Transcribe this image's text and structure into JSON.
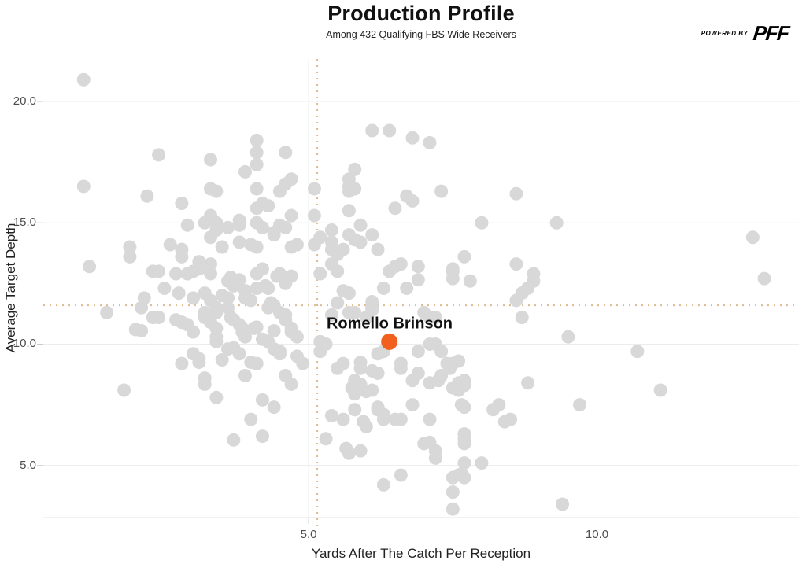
{
  "header": {
    "logo": {
      "powered_by": "POWERED BY",
      "brand": "PFF"
    }
  },
  "chart_data": {
    "type": "scatter",
    "title": "Production Profile",
    "subtitle": "Among 432 Qualifying FBS Wide Receivers",
    "xlabel": "Yards After The Catch Per Reception",
    "ylabel": "Average Target Depth",
    "xlim": [
      0.4,
      13.5
    ],
    "ylim": [
      2.85,
      21.75
    ],
    "x_ticks": [
      5.0,
      10.0
    ],
    "x_tick_labels": [
      "5.0",
      "10.0"
    ],
    "y_ticks": [
      5.0,
      10.0,
      15.0,
      20.0
    ],
    "y_tick_labels": [
      "5.0",
      "10.0",
      "15.0",
      "20.0"
    ],
    "grid": true,
    "legend": "none",
    "colors": {
      "points": "#d8d8d8",
      "highlight": "#f1611d",
      "crosshair": "#dcbb90",
      "gridline": "#ececec",
      "tick": "#c8c8c8"
    },
    "crosshair": {
      "x": 5.15,
      "y": 11.6
    },
    "highlight": {
      "name": "Romello Brinson",
      "x": 6.4,
      "y": 10.1
    },
    "points": [
      [
        1.1,
        20.9
      ],
      [
        2.4,
        17.8
      ],
      [
        1.1,
        16.5
      ],
      [
        3.3,
        17.6
      ],
      [
        2.2,
        16.1
      ],
      [
        2.8,
        15.8
      ],
      [
        4.1,
        18.4
      ],
      [
        4.1,
        17.9
      ],
      [
        4.6,
        17.9
      ],
      [
        4.1,
        17.4
      ],
      [
        3.9,
        17.1
      ],
      [
        3.3,
        16.4
      ],
      [
        3.4,
        16.3
      ],
      [
        4.1,
        16.4
      ],
      [
        4.5,
        16.3
      ],
      [
        4.6,
        16.6
      ],
      [
        4.7,
        16.8
      ],
      [
        4.2,
        15.8
      ],
      [
        4.3,
        15.7
      ],
      [
        4.1,
        15.6
      ],
      [
        3.3,
        15.3
      ],
      [
        3.4,
        15.0
      ],
      [
        3.2,
        15.0
      ],
      [
        2.9,
        14.9
      ],
      [
        3.4,
        14.7
      ],
      [
        3.6,
        14.8
      ],
      [
        3.8,
        15.1
      ],
      [
        3.8,
        14.9
      ],
      [
        4.1,
        15.0
      ],
      [
        4.2,
        14.8
      ],
      [
        4.4,
        14.5
      ],
      [
        4.4,
        14.6
      ],
      [
        4.5,
        14.9
      ],
      [
        4.7,
        15.3
      ],
      [
        4.6,
        14.8
      ],
      [
        4.8,
        14.1
      ],
      [
        4.7,
        14.0
      ],
      [
        4.0,
        14.1
      ],
      [
        4.1,
        14.0
      ],
      [
        3.8,
        14.2
      ],
      [
        3.3,
        14.4
      ],
      [
        2.6,
        14.1
      ],
      [
        2.8,
        13.9
      ],
      [
        1.9,
        14.0
      ],
      [
        3.5,
        14.0
      ],
      [
        6.1,
        18.8
      ],
      [
        6.4,
        18.8
      ],
      [
        6.8,
        18.5
      ],
      [
        7.1,
        18.3
      ],
      [
        5.8,
        17.2
      ],
      [
        5.7,
        16.8
      ],
      [
        5.7,
        16.5
      ],
      [
        5.8,
        16.4
      ],
      [
        5.7,
        16.3
      ],
      [
        5.1,
        16.4
      ],
      [
        7.3,
        16.3
      ],
      [
        8.6,
        16.2
      ],
      [
        6.7,
        16.1
      ],
      [
        6.8,
        15.9
      ],
      [
        6.5,
        15.6
      ],
      [
        5.7,
        15.5
      ],
      [
        5.1,
        15.3
      ],
      [
        8.0,
        15.0
      ],
      [
        9.3,
        15.0
      ],
      [
        5.9,
        14.9
      ],
      [
        5.4,
        14.7
      ],
      [
        5.2,
        14.4
      ],
      [
        5.4,
        14.2
      ],
      [
        5.7,
        14.5
      ],
      [
        5.8,
        14.3
      ],
      [
        5.9,
        14.2
      ],
      [
        6.1,
        14.5
      ],
      [
        5.1,
        14.1
      ],
      [
        5.4,
        13.9
      ],
      [
        5.6,
        13.9
      ],
      [
        6.2,
        13.9
      ],
      [
        12.7,
        14.4
      ],
      [
        12.9,
        12.7
      ],
      [
        1.2,
        13.2
      ],
      [
        1.9,
        13.6
      ],
      [
        2.3,
        13.0
      ],
      [
        2.4,
        13.0
      ],
      [
        2.7,
        12.9
      ],
      [
        2.8,
        13.6
      ],
      [
        2.9,
        12.9
      ],
      [
        3.0,
        13.0
      ],
      [
        3.1,
        13.1
      ],
      [
        3.1,
        13.4
      ],
      [
        3.3,
        13.3
      ],
      [
        3.3,
        12.9
      ],
      [
        3.2,
        12.1
      ],
      [
        3.3,
        11.8
      ],
      [
        2.75,
        12.1
      ],
      [
        3.0,
        11.9
      ],
      [
        2.5,
        12.3
      ],
      [
        2.15,
        11.9
      ],
      [
        2.1,
        11.5
      ],
      [
        1.5,
        11.3
      ],
      [
        2.3,
        11.1
      ],
      [
        2.4,
        11.1
      ],
      [
        2.7,
        11.0
      ],
      [
        2.8,
        10.9
      ],
      [
        2.9,
        10.8
      ],
      [
        2.0,
        10.6
      ],
      [
        2.1,
        10.55
      ],
      [
        3.0,
        10.5
      ],
      [
        3.2,
        11.3
      ],
      [
        3.2,
        11.1
      ],
      [
        3.3,
        10.9
      ],
      [
        3.4,
        11.3
      ],
      [
        3.4,
        11.5
      ],
      [
        3.5,
        12.0
      ],
      [
        3.6,
        12.6
      ],
      [
        3.65,
        12.75
      ],
      [
        3.7,
        12.4
      ],
      [
        3.8,
        12.65
      ],
      [
        3.9,
        12.2
      ],
      [
        3.9,
        11.9
      ],
      [
        4.0,
        11.8
      ],
      [
        3.6,
        11.9
      ],
      [
        3.6,
        11.5
      ],
      [
        3.4,
        10.65
      ],
      [
        3.4,
        10.3
      ],
      [
        3.4,
        10.1
      ],
      [
        3.65,
        11.1
      ],
      [
        3.7,
        11.0
      ],
      [
        3.8,
        10.8
      ],
      [
        3.85,
        10.65
      ],
      [
        3.85,
        10.5
      ],
      [
        3.9,
        10.3
      ],
      [
        4.1,
        12.3
      ],
      [
        4.1,
        12.9
      ],
      [
        4.2,
        13.1
      ],
      [
        4.25,
        12.4
      ],
      [
        4.3,
        12.3
      ],
      [
        4.35,
        11.7
      ],
      [
        4.3,
        11.5
      ],
      [
        4.4,
        11.6
      ],
      [
        4.45,
        12.8
      ],
      [
        4.5,
        12.9
      ],
      [
        4.6,
        12.5
      ],
      [
        4.65,
        12.75
      ],
      [
        4.7,
        12.8
      ],
      [
        4.5,
        11.3
      ],
      [
        4.6,
        11.2
      ],
      [
        4.6,
        11.0
      ],
      [
        4.7,
        10.65
      ],
      [
        4.7,
        10.5
      ],
      [
        4.05,
        10.65
      ],
      [
        4.1,
        10.7
      ],
      [
        4.2,
        10.2
      ],
      [
        4.3,
        10.1
      ],
      [
        4.4,
        9.8
      ],
      [
        4.5,
        9.7
      ],
      [
        4.5,
        9.6
      ],
      [
        4.4,
        10.55
      ],
      [
        4.8,
        10.3
      ],
      [
        4.8,
        9.5
      ],
      [
        4.9,
        9.2
      ],
      [
        3.0,
        9.6
      ],
      [
        3.1,
        9.4
      ],
      [
        3.1,
        9.25
      ],
      [
        2.8,
        9.2
      ],
      [
        3.5,
        9.35
      ],
      [
        3.6,
        9.8
      ],
      [
        3.7,
        9.85
      ],
      [
        3.8,
        9.6
      ],
      [
        3.9,
        8.7
      ],
      [
        4.0,
        9.25
      ],
      [
        4.1,
        9.2
      ],
      [
        3.2,
        8.6
      ],
      [
        3.2,
        8.35
      ],
      [
        1.8,
        8.1
      ],
      [
        3.4,
        7.8
      ],
      [
        4.2,
        7.7
      ],
      [
        4.4,
        7.4
      ],
      [
        4.6,
        8.7
      ],
      [
        4.7,
        8.35
      ],
      [
        5.5,
        13.7
      ],
      [
        5.4,
        13.3
      ],
      [
        5.5,
        13.0
      ],
      [
        5.2,
        12.9
      ],
      [
        5.6,
        12.2
      ],
      [
        5.7,
        12.1
      ],
      [
        5.5,
        11.7
      ],
      [
        5.7,
        11.3
      ],
      [
        5.4,
        11.2
      ],
      [
        5.8,
        11.3
      ],
      [
        6.1,
        11.75
      ],
      [
        6.1,
        11.5
      ],
      [
        6.3,
        12.3
      ],
      [
        6.4,
        13.0
      ],
      [
        6.5,
        13.2
      ],
      [
        6.6,
        13.3
      ],
      [
        6.9,
        13.2
      ],
      [
        6.9,
        12.65
      ],
      [
        6.7,
        12.3
      ],
      [
        7.5,
        13.0
      ],
      [
        7.5,
        13.1
      ],
      [
        7.5,
        12.7
      ],
      [
        7.7,
        13.6
      ],
      [
        7.8,
        12.6
      ],
      [
        8.6,
        13.3
      ],
      [
        8.9,
        12.9
      ],
      [
        8.9,
        12.6
      ],
      [
        8.8,
        12.3
      ],
      [
        8.7,
        12.1
      ],
      [
        8.6,
        11.8
      ],
      [
        8.7,
        11.1
      ],
      [
        6.1,
        11.4
      ],
      [
        6.0,
        11.1
      ],
      [
        7.1,
        11.1
      ],
      [
        7.2,
        11.1
      ],
      [
        7.0,
        11.3
      ],
      [
        6.3,
        9.7
      ],
      [
        6.2,
        9.6
      ],
      [
        6.9,
        9.7
      ],
      [
        7.1,
        10.0
      ],
      [
        7.2,
        10.0
      ],
      [
        7.3,
        9.7
      ],
      [
        6.6,
        9.2
      ],
      [
        6.6,
        9.0
      ],
      [
        7.4,
        9.2
      ],
      [
        7.45,
        9.0
      ],
      [
        7.5,
        9.2
      ],
      [
        7.6,
        9.3
      ],
      [
        7.3,
        8.7
      ],
      [
        6.9,
        8.8
      ],
      [
        6.8,
        8.5
      ],
      [
        7.1,
        8.4
      ],
      [
        7.25,
        8.5
      ],
      [
        7.6,
        8.4
      ],
      [
        7.7,
        8.5
      ],
      [
        7.7,
        8.3
      ],
      [
        7.5,
        8.2
      ],
      [
        7.6,
        8.1
      ],
      [
        6.8,
        7.5
      ],
      [
        7.65,
        7.5
      ],
      [
        7.7,
        7.4
      ],
      [
        8.3,
        7.5
      ],
      [
        8.2,
        7.3
      ],
      [
        8.4,
        6.8
      ],
      [
        5.9,
        9.25
      ],
      [
        5.9,
        9.0
      ],
      [
        5.8,
        8.5
      ],
      [
        5.9,
        8.35
      ],
      [
        5.75,
        8.2
      ],
      [
        5.8,
        7.95
      ],
      [
        6.0,
        8.05
      ],
      [
        6.1,
        8.1
      ],
      [
        6.1,
        8.9
      ],
      [
        6.2,
        8.8
      ],
      [
        5.6,
        9.2
      ],
      [
        5.5,
        9.0
      ],
      [
        5.2,
        9.7
      ],
      [
        5.3,
        10.0
      ],
      [
        5.2,
        10.1
      ],
      [
        6.2,
        7.4
      ],
      [
        6.2,
        7.3
      ],
      [
        6.3,
        7.1
      ],
      [
        6.5,
        6.9
      ],
      [
        5.8,
        7.3
      ],
      [
        5.4,
        7.05
      ],
      [
        5.95,
        6.8
      ],
      [
        8.8,
        8.4
      ],
      [
        9.5,
        10.3
      ],
      [
        10.7,
        9.7
      ],
      [
        11.1,
        8.1
      ],
      [
        9.7,
        7.5
      ],
      [
        4.0,
        6.9
      ],
      [
        3.7,
        6.05
      ],
      [
        4.2,
        6.2
      ],
      [
        5.3,
        6.1
      ],
      [
        5.6,
        6.9
      ],
      [
        5.65,
        5.7
      ],
      [
        5.7,
        5.5
      ],
      [
        5.9,
        5.6
      ],
      [
        6.0,
        6.6
      ],
      [
        6.3,
        6.9
      ],
      [
        6.6,
        6.9
      ],
      [
        7.1,
        6.9
      ],
      [
        7.0,
        5.9
      ],
      [
        7.1,
        5.95
      ],
      [
        7.2,
        5.6
      ],
      [
        7.2,
        5.3
      ],
      [
        7.7,
        6.3
      ],
      [
        7.7,
        6.1
      ],
      [
        7.7,
        5.9
      ],
      [
        7.7,
        5.1
      ],
      [
        8.0,
        5.1
      ],
      [
        7.6,
        4.6
      ],
      [
        7.65,
        4.65
      ],
      [
        7.7,
        4.5
      ],
      [
        7.5,
        4.5
      ],
      [
        6.3,
        4.2
      ],
      [
        6.6,
        4.6
      ],
      [
        7.5,
        3.9
      ],
      [
        7.5,
        3.2
      ],
      [
        9.4,
        3.4
      ],
      [
        8.5,
        6.9
      ]
    ]
  }
}
